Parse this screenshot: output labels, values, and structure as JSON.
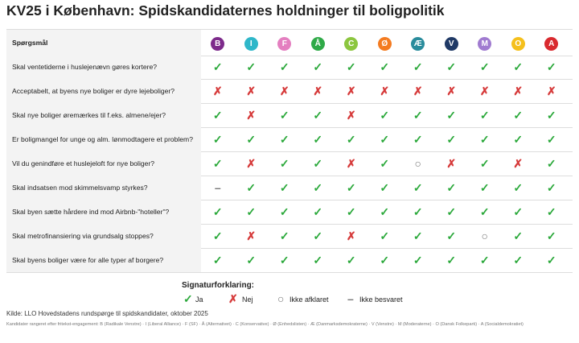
{
  "title": "KV25 i København: Spidskandidaternes holdninger til boligpolitik",
  "table": {
    "header": "Spørgsmål",
    "parties": [
      {
        "letter": "B",
        "color": "#7d2b8b"
      },
      {
        "letter": "I",
        "color": "#2fb7c9"
      },
      {
        "letter": "F",
        "color": "#e47fc0"
      },
      {
        "letter": "Å",
        "color": "#2faa48"
      },
      {
        "letter": "C",
        "color": "#8cc63f"
      },
      {
        "letter": "Ø",
        "color": "#f47b20"
      },
      {
        "letter": "Æ",
        "color": "#2a8c9c"
      },
      {
        "letter": "V",
        "color": "#203a66"
      },
      {
        "letter": "M",
        "color": "#a07bd0"
      },
      {
        "letter": "O",
        "color": "#f5c01c"
      },
      {
        "letter": "A",
        "color": "#d92a2f"
      }
    ],
    "rows": [
      {
        "question": "Skal ventetiderne i huslejenævn gøres kortere?",
        "answers": [
          "✓",
          "✓",
          "✓",
          "✓",
          "✓",
          "✓",
          "✓",
          "✓",
          "✓",
          "✓",
          "✓"
        ]
      },
      {
        "question": "Acceptabelt, at byens nye boliger er dyre lejeboliger?",
        "answers": [
          "✗",
          "✗",
          "✗",
          "✗",
          "✗",
          "✗",
          "✗",
          "✗",
          "✗",
          "✗",
          "✗"
        ]
      },
      {
        "question": "Skal nye boliger øremærkes til f.eks. almene/ejer?",
        "answers": [
          "✓",
          "✗",
          "✓",
          "✓",
          "✗",
          "✓",
          "✓",
          "✓",
          "✓",
          "✓",
          "✓"
        ]
      },
      {
        "question": "Er boligmangel for unge og alm. lønmodtagere et problem?",
        "answers": [
          "✓",
          "✓",
          "✓",
          "✓",
          "✓",
          "✓",
          "✓",
          "✓",
          "✓",
          "✓",
          "✓"
        ]
      },
      {
        "question": "Vil du genindføre et huslejeloft for nye boliger?",
        "answers": [
          "✓",
          "✗",
          "✓",
          "✓",
          "✗",
          "✓",
          "○",
          "✗",
          "✓",
          "✗",
          "✓"
        ]
      },
      {
        "question": "Skal indsatsen mod skimmelsvamp styrkes?",
        "answers": [
          "–",
          "✓",
          "✓",
          "✓",
          "✓",
          "✓",
          "✓",
          "✓",
          "✓",
          "✓",
          "✓"
        ]
      },
      {
        "question": "Skal byen sætte hårdere ind mod Airbnb-\"hoteller\"?",
        "answers": [
          "✓",
          "✓",
          "✓",
          "✓",
          "✓",
          "✓",
          "✓",
          "✓",
          "✓",
          "✓",
          "✓"
        ]
      },
      {
        "question": "Skal metrofinansiering via grundsalg stoppes?",
        "answers": [
          "✓",
          "✗",
          "✓",
          "✓",
          "✗",
          "✓",
          "✓",
          "✓",
          "○",
          "✓",
          "✓"
        ]
      },
      {
        "question": "Skal byens boliger være for alle typer af borgere?",
        "answers": [
          "✓",
          "✓",
          "✓",
          "✓",
          "✓",
          "✓",
          "✓",
          "✓",
          "✓",
          "✓",
          "✓"
        ]
      }
    ]
  },
  "legend": {
    "title": "Signaturforklaring:",
    "items": [
      {
        "symbol": "✓",
        "label": "Ja",
        "color": "#2aa83a"
      },
      {
        "symbol": "✗",
        "label": "Nej",
        "color": "#d63a3a"
      },
      {
        "symbol": "○",
        "label": "Ikke afklaret",
        "color": "#777777"
      },
      {
        "symbol": "–",
        "label": "Ikke besvaret",
        "color": "#777777"
      }
    ]
  },
  "footer": {
    "source": "Kilde: LLO Hovedstadens rundspørge til spidskandidater, oktober 2025",
    "note": "Kandidater rangeret efter fritekst-engagement: B (Radikale Venstre) · I (Liberal Alliance) · F (SF) · Å (Alternativet) · C (Konservative) · Ø (Enhedslisten) · Æ (Danmarksdemokraterne) · V (Venstre) · M (Moderaterne) · O (Dansk Folkeparti) · A (Socialdemokratiet)"
  }
}
